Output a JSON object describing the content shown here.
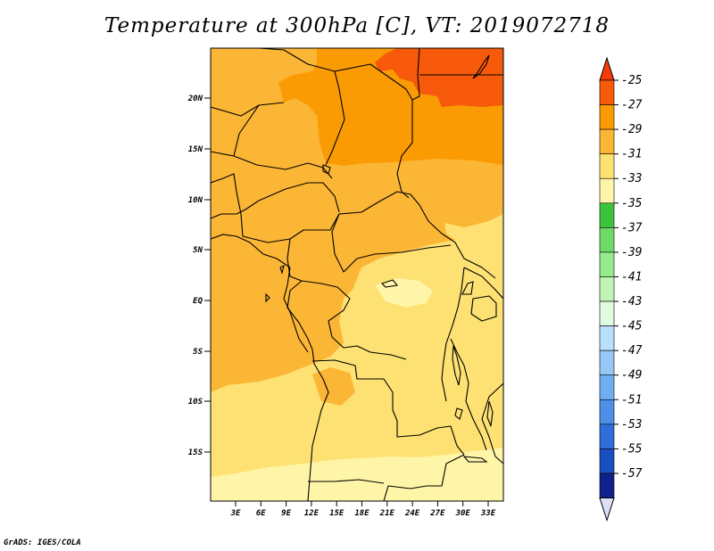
{
  "title": "Temperature at 300hPa [C], VT: 2019072718",
  "credit": "GrADS: IGES/COLA",
  "map": {
    "lat_ticks": [
      "20N",
      "15N",
      "10N",
      "5N",
      "EQ",
      "5S",
      "10S",
      "15S"
    ],
    "lon_ticks": [
      "3E",
      "6E",
      "9E",
      "12E",
      "15E",
      "18E",
      "21E",
      "24E",
      "27E",
      "30E",
      "33E"
    ]
  },
  "colorbar": {
    "labels": [
      "-25",
      "-27",
      "-29",
      "-31",
      "-33",
      "-35",
      "-37",
      "-39",
      "-41",
      "-43",
      "-45",
      "-47",
      "-49",
      "-51",
      "-53",
      "-55",
      "-57"
    ],
    "colors": [
      "#f65a0a",
      "#fb9b04",
      "#fcb636",
      "#fde173",
      "#fff5a8",
      "#3ec23c",
      "#6edb68",
      "#97eb8c",
      "#bff4b5",
      "#e0fbe0",
      "#b8dffb",
      "#97c7f4",
      "#6faef0",
      "#4e8fe8",
      "#2f6ed8",
      "#1a4fc0",
      "#10228a"
    ],
    "top_triangle": "#f63c0a",
    "bottom_triangle": "#dce0f8"
  },
  "colors": {
    "t_25": "#f65a0a",
    "t_27": "#fb9b04",
    "t_29": "#fcb636",
    "t_31": "#fde173",
    "t_33": "#fff5a8"
  }
}
